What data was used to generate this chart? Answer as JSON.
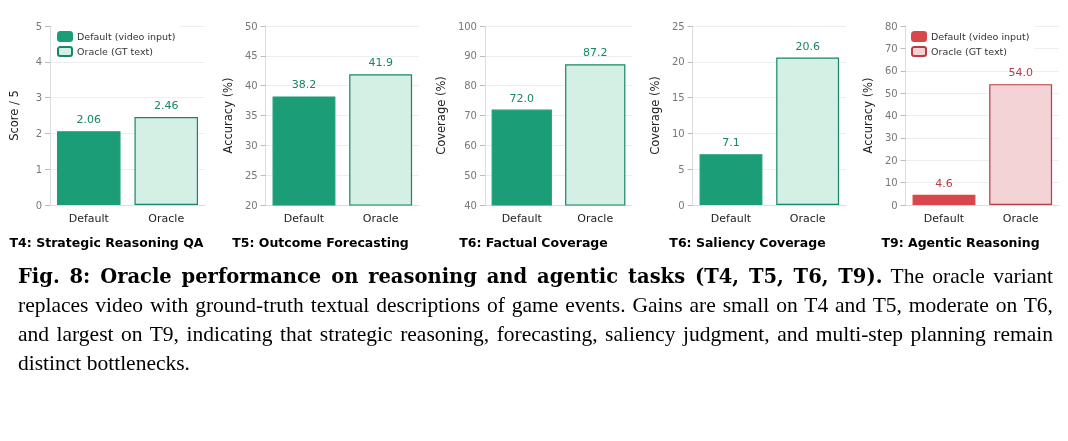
{
  "chart_data": [
    {
      "type": "bar",
      "title": "T4: Strategic Reasoning QA",
      "ylabel": "Score / 5",
      "categories": [
        "Default",
        "Oracle"
      ],
      "series": [
        {
          "name": "Default (video input)",
          "color": "#1b9e77",
          "values": [
            2.06,
            null
          ],
          "value_labels": [
            "2.06",
            null
          ]
        },
        {
          "name": "Oracle (GT text)",
          "color": "#d4efe4",
          "values": [
            null,
            2.46
          ],
          "value_labels": [
            null,
            "2.46"
          ]
        }
      ],
      "ylim": [
        0,
        5
      ],
      "yticks": [
        0,
        1,
        2,
        3,
        4,
        5
      ],
      "grid": "y",
      "legend": "top left",
      "annotations": [
        "Fig. 8: Oracle performance on reasoning and agentic tasks (T4, T5, T6, T9).",
        "The oracle variant replaces video with ground-truth textual descriptions of game events. Gains are small on T4 and T5, moderate on T6, and largest on T9, indicating that strategic reasoning, forecasting, saliency judgment, and multi-step planning remain distinct bottlenecks."
      ]
    },
    {
      "type": "bar",
      "title": "T5: Outcome Forecasting",
      "ylabel": "Accuracy (%)",
      "categories": [
        "Default",
        "Oracle"
      ],
      "series": [
        {
          "color": "#1b9e77",
          "values": [
            38.2,
            null
          ],
          "value_labels": [
            "38.2",
            null
          ]
        },
        {
          "color": "#d4efe4",
          "values": [
            null,
            41.9
          ],
          "value_labels": [
            null,
            "41.9"
          ]
        }
      ],
      "ylim": [
        20,
        50
      ],
      "yticks": [
        20,
        25,
        30,
        35,
        40,
        45,
        50
      ],
      "grid": "y"
    },
    {
      "type": "bar",
      "title": "T6: Factual Coverage",
      "ylabel": "Coverage (%)",
      "categories": [
        "Default",
        "Oracle"
      ],
      "series": [
        {
          "color": "#1b9e77",
          "values": [
            72.0,
            null
          ],
          "value_labels": [
            "72.0",
            null
          ]
        },
        {
          "color": "#d4efe4",
          "values": [
            null,
            87.2
          ],
          "value_labels": [
            null,
            "87.2"
          ]
        }
      ],
      "ylim": [
        40,
        100
      ],
      "yticks": [
        40,
        50,
        60,
        70,
        80,
        90,
        100
      ],
      "grid": "y"
    },
    {
      "type": "bar",
      "title": "T6: Saliency Coverage",
      "ylabel": "Coverage (%)",
      "categories": [
        "Default",
        "Oracle"
      ],
      "series": [
        {
          "color": "#1b9e77",
          "values": [
            7.1,
            null
          ],
          "value_labels": [
            "7.1",
            null
          ]
        },
        {
          "color": "#d4efe4",
          "values": [
            null,
            20.6
          ],
          "value_labels": [
            null,
            "20.6"
          ]
        }
      ],
      "ylim": [
        0,
        25
      ],
      "yticks": [
        0,
        5,
        10,
        15,
        20,
        25
      ],
      "grid": "y"
    },
    {
      "type": "bar",
      "title": "T9: Agentic Reasoning",
      "ylabel": "Accuracy (%)",
      "categories": [
        "Default",
        "Oracle"
      ],
      "series": [
        {
          "name": "Default (video input)",
          "color": "#d9474c",
          "values": [
            4.6,
            null
          ],
          "value_labels": [
            "4.6",
            null
          ]
        },
        {
          "name": "Oracle (GT text)",
          "color": "#f4d3d6",
          "values": [
            null,
            54.0
          ],
          "value_labels": [
            null,
            "54.0"
          ]
        }
      ],
      "ylim": [
        0,
        80
      ],
      "yticks": [
        0,
        10,
        20,
        30,
        40,
        50,
        60,
        70,
        80
      ],
      "grid": "y",
      "legend": "top left"
    }
  ]
}
